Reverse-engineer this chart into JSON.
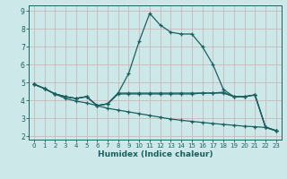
{
  "xlabel": "Humidex (Indice chaleur)",
  "background_color": "#cce8e8",
  "grid_color": "#c8b0b0",
  "line_color": "#1a6060",
  "xlim": [
    -0.5,
    23.5
  ],
  "ylim": [
    1.8,
    9.3
  ],
  "yticks": [
    2,
    3,
    4,
    5,
    6,
    7,
    8,
    9
  ],
  "xticks": [
    0,
    1,
    2,
    3,
    4,
    5,
    6,
    7,
    8,
    9,
    10,
    11,
    12,
    13,
    14,
    15,
    16,
    17,
    18,
    19,
    20,
    21,
    22,
    23
  ],
  "line1_x": [
    0,
    1,
    2,
    3,
    4,
    5,
    6,
    7,
    8,
    9,
    10,
    11,
    12,
    13,
    14,
    15,
    16,
    17,
    18,
    19,
    20,
    21,
    22,
    23
  ],
  "line1_y": [
    4.9,
    4.65,
    4.35,
    4.2,
    4.1,
    4.2,
    3.7,
    3.8,
    4.4,
    5.5,
    7.3,
    8.85,
    8.2,
    7.8,
    7.7,
    7.7,
    7.0,
    6.0,
    4.6,
    4.2,
    4.2,
    4.3,
    2.5,
    2.3
  ],
  "line2_x": [
    0,
    1,
    2,
    3,
    4,
    5,
    6,
    7,
    8,
    9,
    10,
    11,
    12,
    13,
    14,
    15,
    16,
    17,
    18,
    19,
    20,
    21,
    22,
    23
  ],
  "line2_y": [
    4.9,
    4.65,
    4.35,
    4.2,
    4.1,
    4.2,
    3.7,
    3.8,
    4.4,
    4.4,
    4.4,
    4.4,
    4.4,
    4.4,
    4.4,
    4.4,
    4.4,
    4.4,
    4.45,
    4.2,
    4.2,
    4.3,
    2.5,
    2.3
  ],
  "line3_x": [
    0,
    1,
    2,
    3,
    4,
    5,
    6,
    7,
    8,
    9,
    10,
    11,
    12,
    13,
    14,
    15,
    16,
    17,
    18,
    19,
    20,
    21,
    22,
    23
  ],
  "line3_y": [
    4.9,
    4.65,
    4.35,
    4.2,
    4.1,
    4.2,
    3.7,
    3.8,
    4.35,
    4.35,
    4.35,
    4.35,
    4.35,
    4.35,
    4.35,
    4.35,
    4.4,
    4.4,
    4.4,
    4.2,
    4.2,
    4.3,
    2.5,
    2.3
  ],
  "line4_x": [
    0,
    1,
    2,
    3,
    4,
    5,
    6,
    7,
    8,
    9,
    10,
    11,
    12,
    13,
    14,
    15,
    16,
    17,
    18,
    19,
    20,
    21,
    22,
    23
  ],
  "line4_y": [
    4.9,
    4.65,
    4.35,
    4.1,
    3.95,
    3.85,
    3.7,
    3.55,
    3.45,
    3.35,
    3.25,
    3.15,
    3.05,
    2.95,
    2.88,
    2.82,
    2.76,
    2.7,
    2.65,
    2.6,
    2.55,
    2.52,
    2.48,
    2.3
  ]
}
